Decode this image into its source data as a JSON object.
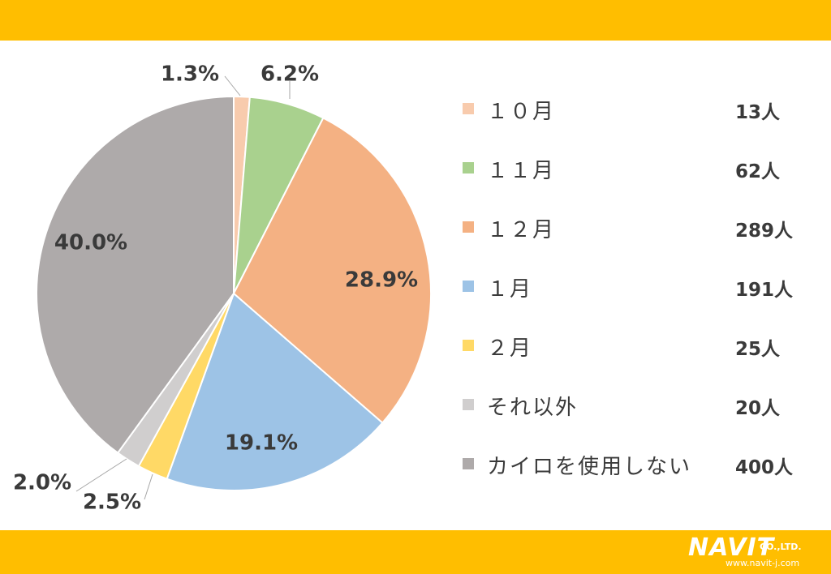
{
  "colors": {
    "band": "#FFBE00",
    "text": "#3a3a3a",
    "slice_edge": "#ffffff"
  },
  "chart_data": {
    "type": "pie",
    "title": "",
    "start_angle_deg": 0,
    "direction": "clockwise",
    "slices": [
      {
        "label": "１０月",
        "count": "13人",
        "percent_label": "1.3%",
        "value": 1.3,
        "color": "#F8CBAD"
      },
      {
        "label": "１１月",
        "count": "62人",
        "percent_label": "6.2%",
        "value": 6.2,
        "color": "#A9D18E"
      },
      {
        "label": "１２月",
        "count": "289人",
        "percent_label": "28.9%",
        "value": 28.9,
        "color": "#F4B183"
      },
      {
        "label": "１月",
        "count": "191人",
        "percent_label": "19.1%",
        "value": 19.1,
        "color": "#9DC3E6"
      },
      {
        "label": "２月",
        "count": "25人",
        "percent_label": "2.5%",
        "value": 2.5,
        "color": "#FFD966"
      },
      {
        "label": "それ以外",
        "count": "20人",
        "percent_label": "2.0%",
        "value": 2.0,
        "color": "#D0CECE"
      },
      {
        "label": "カイロを使用しない",
        "count": "400人",
        "percent_label": "40.0%",
        "value": 40.0,
        "color": "#AEAAAA"
      }
    ],
    "legend_position": "right"
  },
  "logo": {
    "brand": "NAVIT",
    "suffix": "CO.,LTD.",
    "url": "www.navit-j.com"
  }
}
